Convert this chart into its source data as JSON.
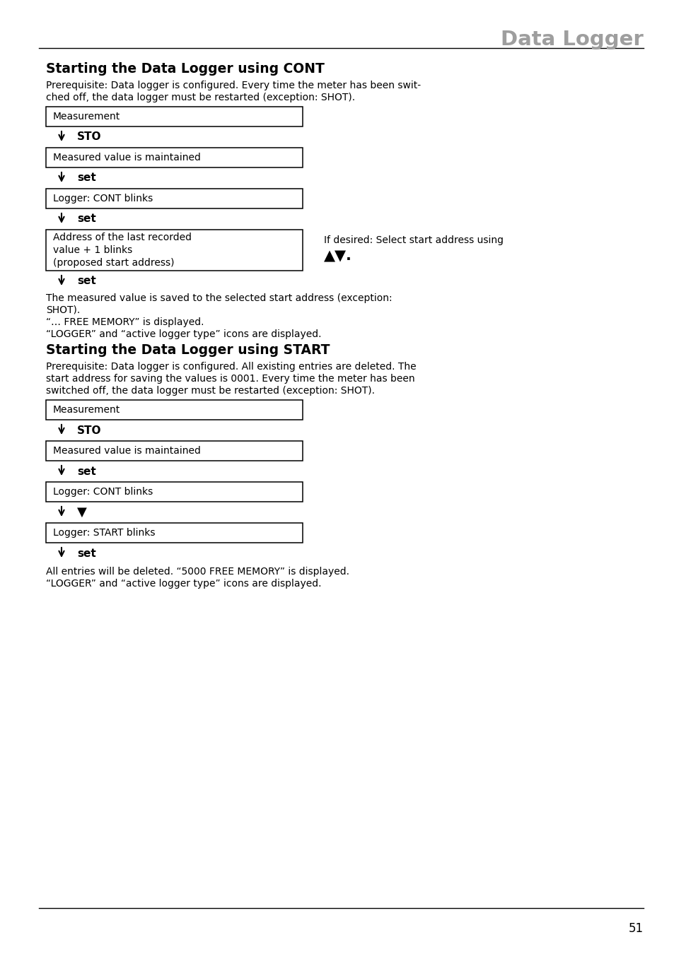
{
  "page_title": "Data Logger",
  "page_number": "51",
  "section1_heading": "Starting the Data Logger using CONT",
  "section1_prereq_lines": [
    "Prerequisite: Data logger is configured. Every time the meter has been swit-",
    "ched off, the data logger must be restarted (exception: SHOT)."
  ],
  "section1_boxes": [
    "Measurement",
    "Measured value is maintained",
    "Logger: CONT blinks",
    "Address of the last recorded\nvalue + 1 blinks\n(proposed start address)"
  ],
  "section1_arrows": [
    "STO",
    "set",
    "set",
    "set"
  ],
  "section1_note_line1": "If desired: Select start address using",
  "section1_note_line2": "▲▼.",
  "section1_after_lines": [
    "The measured value is saved to the selected start address (exception:",
    "SHOT).",
    "“… FREE MEMORY” is displayed.",
    "“LOGGER” and “active logger type” icons are displayed."
  ],
  "section2_heading": "Starting the Data Logger using START",
  "section2_prereq_lines": [
    "Prerequisite: Data logger is configured. All existing entries are deleted. The",
    "start address for saving the values is 0001. Every time the meter has been",
    "switched off, the data logger must be restarted (exception: SHOT)."
  ],
  "section2_boxes": [
    "Measurement",
    "Measured value is maintained",
    "Logger: CONT blinks",
    "Logger: START blinks"
  ],
  "section2_arrows": [
    "STO",
    "set",
    "▼",
    "set"
  ],
  "section2_after_lines": [
    "All entries will be deleted. “5000 FREE MEMORY” is displayed.",
    "“LOGGER” and “active logger type” icons are displayed."
  ],
  "bg_color": "#ffffff",
  "text_color": "#000000",
  "title_color": "#9e9e9e"
}
